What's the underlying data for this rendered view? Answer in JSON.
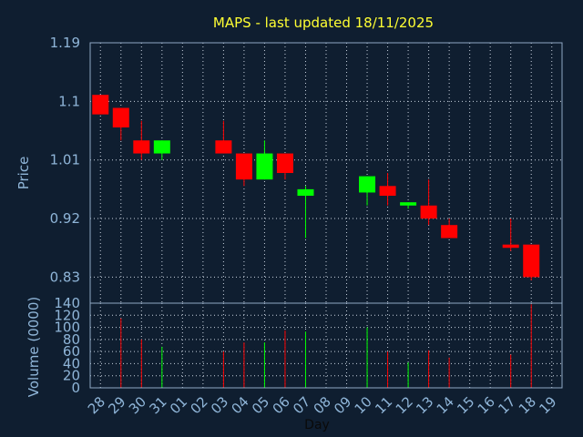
{
  "chart_data": {
    "type": "candlestick",
    "title": "MAPS - last updated 18/11/2025",
    "xlabel": "Day",
    "price_panel": {
      "ylabel": "Price",
      "ylim": [
        0.79,
        1.19
      ],
      "yticks": [
        0.83,
        0.92,
        1.01,
        1.1,
        1.19
      ],
      "grid": true
    },
    "volume_panel": {
      "ylabel": "Volume (0000)",
      "ylim": [
        0,
        140
      ],
      "yticks": [
        0,
        20,
        40,
        60,
        80,
        100,
        120,
        140
      ],
      "grid": true
    },
    "x_ticks": [
      "28",
      "29",
      "30",
      "31",
      "01",
      "02",
      "03",
      "04",
      "05",
      "06",
      "07",
      "08",
      "09",
      "10",
      "11",
      "12",
      "13",
      "14",
      "15",
      "16",
      "17",
      "18",
      "19"
    ],
    "candles": [
      {
        "day": "28",
        "open": 1.11,
        "high": 1.11,
        "low": 1.08,
        "close": 1.08,
        "volume": 0
      },
      {
        "day": "29",
        "open": 1.09,
        "high": 1.09,
        "low": 1.04,
        "close": 1.06,
        "volume": 115
      },
      {
        "day": "30",
        "open": 1.04,
        "high": 1.07,
        "low": 1.01,
        "close": 1.02,
        "volume": 80
      },
      {
        "day": "31",
        "open": 1.02,
        "high": 1.04,
        "low": 1.01,
        "close": 1.04,
        "volume": 68
      },
      {
        "day": "03",
        "open": 1.04,
        "high": 1.07,
        "low": 1.02,
        "close": 1.02,
        "volume": 60
      },
      {
        "day": "04",
        "open": 1.02,
        "high": 1.02,
        "low": 0.97,
        "close": 0.98,
        "volume": 75
      },
      {
        "day": "05",
        "open": 0.98,
        "high": 1.04,
        "low": 0.98,
        "close": 1.02,
        "volume": 75
      },
      {
        "day": "06",
        "open": 1.02,
        "high": 1.02,
        "low": 0.98,
        "close": 0.99,
        "volume": 95
      },
      {
        "day": "07",
        "open": 0.955,
        "high": 0.97,
        "low": 0.89,
        "close": 0.965,
        "volume": 93
      },
      {
        "day": "10",
        "open": 0.96,
        "high": 0.985,
        "low": 0.94,
        "close": 0.985,
        "volume": 100
      },
      {
        "day": "11",
        "open": 0.97,
        "high": 0.99,
        "low": 0.94,
        "close": 0.955,
        "volume": 60
      },
      {
        "day": "12",
        "open": 0.94,
        "high": 0.945,
        "low": 0.935,
        "close": 0.945,
        "volume": 42
      },
      {
        "day": "13",
        "open": 0.94,
        "high": 0.98,
        "low": 0.91,
        "close": 0.92,
        "volume": 62
      },
      {
        "day": "14",
        "open": 0.91,
        "high": 0.92,
        "low": 0.89,
        "close": 0.89,
        "volume": 50
      },
      {
        "day": "17",
        "open": 0.88,
        "high": 0.92,
        "low": 0.87,
        "close": 0.875,
        "volume": 55
      },
      {
        "day": "18",
        "open": 0.88,
        "high": 0.88,
        "low": 0.825,
        "close": 0.83,
        "volume": 138
      }
    ],
    "colors": {
      "background": "#0f1e30",
      "up": "#00ff00",
      "down": "#ff0000",
      "title": "#ffff33",
      "axis_text": "#8fb5d8",
      "grid": "#c8d2de",
      "frame": "#8fa8c4"
    }
  }
}
